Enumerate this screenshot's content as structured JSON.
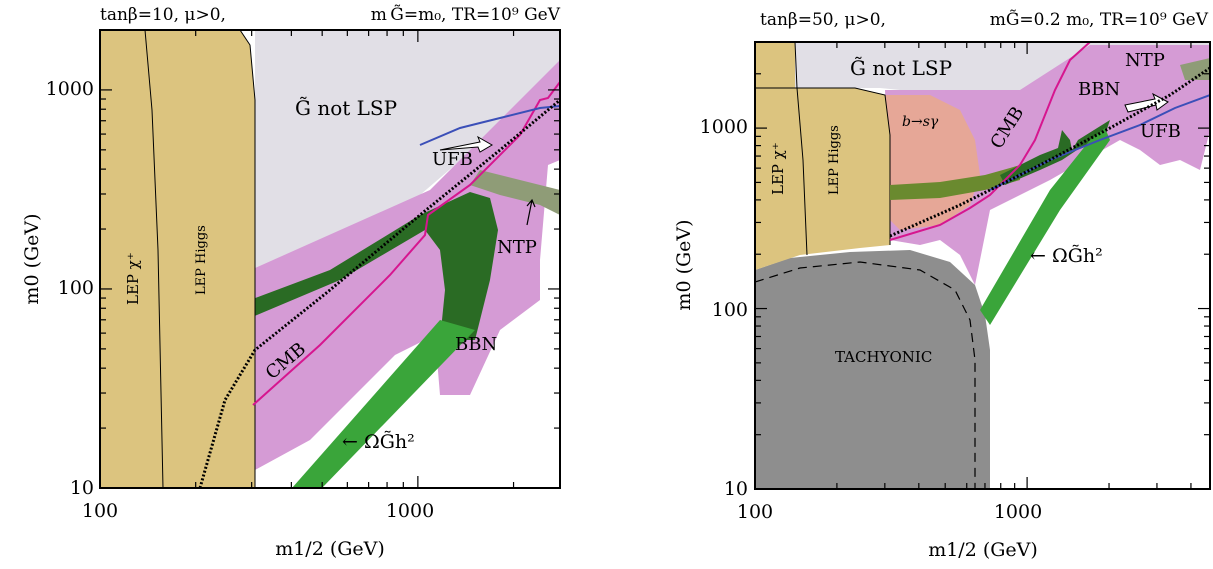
{
  "chart_data": [
    {
      "type": "area",
      "header": {
        "left": "tanβ=10,  μ>0,",
        "right": "m G̃=m₀,  TR=10⁹ GeV"
      },
      "xlabel": "m1/2 (GeV)",
      "ylabel": "m0 (GeV)",
      "x_scale": "log",
      "y_scale": "log",
      "xlim": [
        100,
        2800
      ],
      "ylim": [
        10,
        2000
      ],
      "x_ticks": [
        {
          "value": 100,
          "label": "100"
        },
        {
          "value": 1000,
          "label": "1000"
        }
      ],
      "y_ticks": [
        {
          "value": 10,
          "label": "10"
        },
        {
          "value": 100,
          "label": "100"
        },
        {
          "value": 1000,
          "label": "1000"
        }
      ],
      "colors": {
        "lep": "#dcc47f",
        "gravitino_not_lsp": "#e1dfe6",
        "bbn": "#d59bd5",
        "ntp": "#8f9c77",
        "relic_dark": "#2a6b24",
        "relic_green": "#3aa53a",
        "cmb": "#d6168f",
        "ufb": "#3b4fb8"
      },
      "labels": {
        "lep_chi": "LEP χ⁺",
        "lep_higgs": "LEP Higgs",
        "not_lsp": "G̃  not  LSP",
        "ufb": "UFB",
        "ntp": "NTP",
        "cmb": "CMB",
        "bbn": "BBN",
        "relic": "← ΩG̃h²"
      },
      "regions": {
        "lep_chi_boundary": [
          [
            160,
            10
          ],
          [
            155,
            300
          ],
          [
            145,
            1500
          ],
          [
            140,
            2000
          ]
        ],
        "lep_higgs_boundary": [
          [
            305,
            10
          ],
          [
            305,
            1200
          ],
          [
            290,
            1600
          ],
          [
            230,
            2000
          ]
        ],
        "not_lsp_boundary": [
          [
            305,
            60
          ],
          [
            1100,
            260
          ],
          [
            2800,
            900
          ]
        ],
        "bbn_region": [
          [
            305,
            13
          ],
          [
            700,
            30
          ],
          [
            1250,
            75
          ],
          [
            1500,
            40
          ],
          [
            2000,
            55
          ],
          [
            2800,
            400
          ],
          [
            2800,
            1400
          ],
          [
            305,
            110
          ]
        ],
        "ntp_band": [
          [
            1650,
            340
          ],
          [
            2800,
            300
          ],
          [
            2800,
            210
          ],
          [
            1650,
            290
          ]
        ],
        "relic_dark_band": [
          [
            305,
            80
          ],
          [
            1100,
            250
          ],
          [
            1500,
            260
          ],
          [
            1620,
            180
          ],
          [
            1250,
            95
          ],
          [
            1100,
            70
          ],
          [
            1080,
            120
          ],
          [
            800,
            140
          ],
          [
            305,
            68
          ]
        ],
        "relic_green_band": [
          [
            480,
            10
          ],
          [
            1250,
            80
          ],
          [
            1350,
            80
          ],
          [
            560,
            10
          ]
        ],
        "cmb_line": [
          [
            305,
            25
          ],
          [
            900,
            110
          ],
          [
            1100,
            170
          ],
          [
            1100,
            260
          ],
          [
            2450,
            620
          ],
          [
            2700,
            750
          ],
          [
            2700,
            1000
          ]
        ],
        "ufb_line": [
          [
            1150,
            430
          ],
          [
            1700,
            580
          ],
          [
            2300,
            700
          ],
          [
            2800,
            800
          ]
        ],
        "lsp_boundary_dotted": [
          [
            210,
            10
          ],
          [
            250,
            23
          ],
          [
            305,
            45
          ],
          [
            1000,
            240
          ],
          [
            2800,
            790
          ]
        ]
      }
    },
    {
      "type": "area",
      "header": {
        "left": "tanβ=50,  μ>0,",
        "right": "mG̃=0.2 m₀,  TR=10⁹ GeV"
      },
      "xlabel": "m1/2 (GeV)",
      "ylabel": "m0 (GeV)",
      "x_scale": "log",
      "y_scale": "log",
      "xlim": [
        100,
        4700
      ],
      "ylim": [
        10,
        3000
      ],
      "x_ticks": [
        {
          "value": 100,
          "label": "100"
        },
        {
          "value": 1000,
          "label": "1000"
        }
      ],
      "y_ticks": [
        {
          "value": 10,
          "label": "10"
        },
        {
          "value": 100,
          "label": "100"
        },
        {
          "value": 1000,
          "label": "1000"
        }
      ],
      "colors": {
        "lep": "#dcc47f",
        "gravitino_not_lsp": "#e1dfe6",
        "bbn": "#d59bd5",
        "bsg": "#e8a890",
        "tachyonic": "#8e8e8e",
        "relic_dark": "#2a6b24",
        "relic_olive": "#6a8a2f",
        "relic_green": "#3aa53a",
        "cmb": "#d6168f",
        "ufb": "#3b4fb8"
      },
      "labels": {
        "lep_chi": "LEP χ⁺",
        "lep_higgs": "LEP Higgs",
        "not_lsp": "G̃  not  LSP",
        "bsg": "b→sγ",
        "cmb": "CMB",
        "bbn": "BBN",
        "ntp": "NTP",
        "ufb": "UFB",
        "relic": "← ΩG̃h²",
        "tachyonic": "TACHYONIC"
      }
    }
  ]
}
